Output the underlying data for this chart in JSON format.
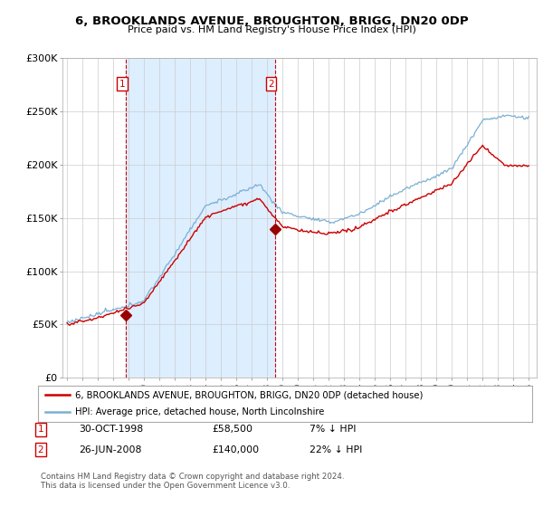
{
  "title": "6, BROOKLANDS AVENUE, BROUGHTON, BRIGG, DN20 0DP",
  "subtitle": "Price paid vs. HM Land Registry's House Price Index (HPI)",
  "legend_line1": "6, BROOKLANDS AVENUE, BROUGHTON, BRIGG, DN20 0DP (detached house)",
  "legend_line2": "HPI: Average price, detached house, North Lincolnshire",
  "sale1_label": "1",
  "sale1_date": "30-OCT-1998",
  "sale1_price": "£58,500",
  "sale1_hpi": "7% ↓ HPI",
  "sale2_label": "2",
  "sale2_date": "26-JUN-2008",
  "sale2_price": "£140,000",
  "sale2_hpi": "22% ↓ HPI",
  "footnote": "Contains HM Land Registry data © Crown copyright and database right 2024.\nThis data is licensed under the Open Government Licence v3.0.",
  "property_color": "#cc0000",
  "hpi_color": "#7ab0d4",
  "shade_color": "#ddeeff",
  "sale_marker_color": "#990000",
  "vline_color": "#cc0000",
  "background_color": "#ffffff",
  "grid_color": "#cccccc",
  "ylim": [
    0,
    300000
  ],
  "xlim_start": 1994.7,
  "xlim_end": 2025.5,
  "sale1_x": 1998.83,
  "sale1_y": 58500,
  "sale2_x": 2008.5,
  "sale2_y": 140000
}
